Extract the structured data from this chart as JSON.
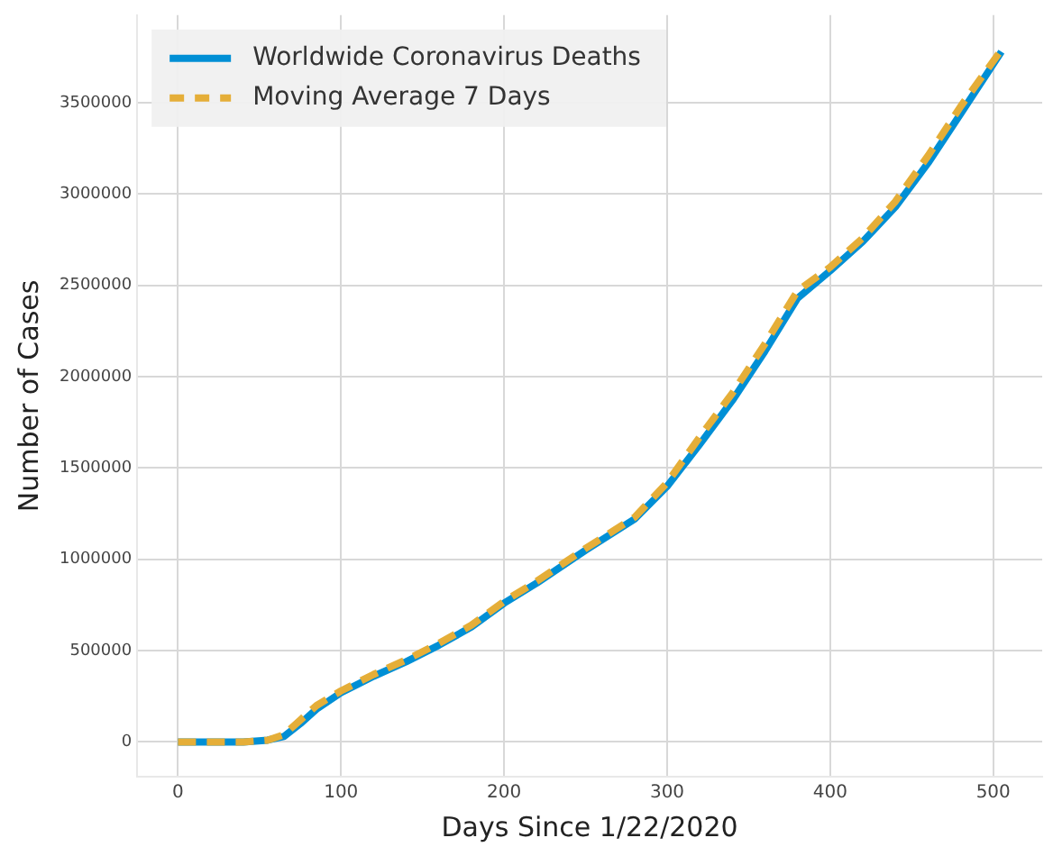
{
  "chart_data": {
    "type": "line",
    "xlabel": "Days Since 1/22/2020",
    "ylabel": "Number of Cases",
    "x": [
      0,
      20,
      40,
      55,
      65,
      75,
      85,
      100,
      120,
      140,
      160,
      180,
      200,
      220,
      250,
      280,
      300,
      320,
      340,
      360,
      380,
      400,
      420,
      440,
      460,
      480,
      505
    ],
    "series": [
      {
        "name": "Worldwide Coronavirus Deaths",
        "color": "#008fd5",
        "line_style": "solid",
        "values": [
          0,
          0,
          0,
          10000,
          30000,
          100000,
          180000,
          270000,
          360000,
          440000,
          530000,
          630000,
          760000,
          870000,
          1050000,
          1220000,
          1400000,
          1630000,
          1870000,
          2140000,
          2430000,
          2580000,
          2740000,
          2930000,
          3170000,
          3440000,
          3780000
        ]
      },
      {
        "name": "Moving Average 7 Days",
        "color": "#e5ae38",
        "line_style": "dashed",
        "values": [
          0,
          0,
          0,
          10000,
          40000,
          120000,
          200000,
          280000,
          370000,
          450000,
          540000,
          640000,
          770000,
          880000,
          1060000,
          1230000,
          1420000,
          1670000,
          1910000,
          2180000,
          2470000,
          2600000,
          2760000,
          2960000,
          3210000,
          3480000,
          3790000
        ]
      }
    ],
    "xlim": [
      -25,
      530
    ],
    "xticks": [
      0,
      100,
      200,
      300,
      400,
      500
    ],
    "ylim": [
      -190000,
      3980000
    ],
    "yticks": [
      0,
      500000,
      1000000,
      1500000,
      2000000,
      2500000,
      3000000,
      3500000
    ],
    "grid": true,
    "legend": "top left",
    "marker": "none"
  }
}
